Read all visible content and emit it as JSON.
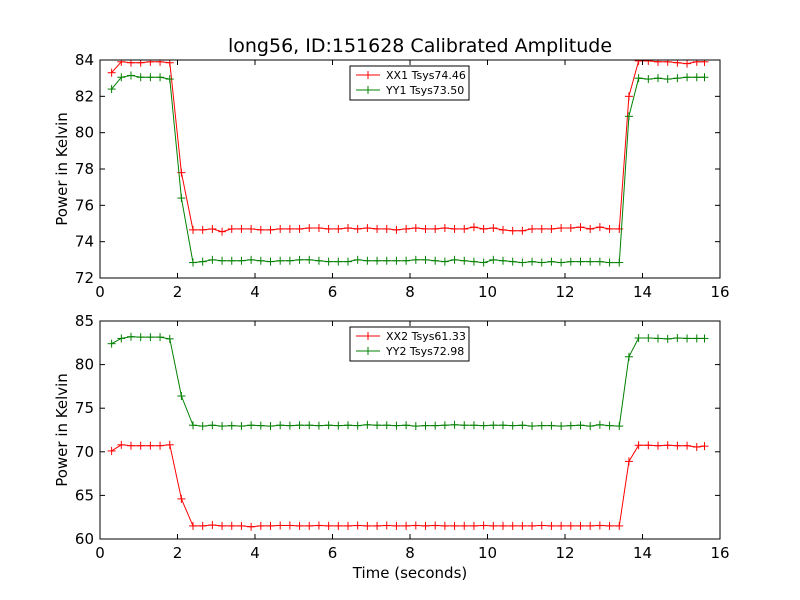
{
  "chart_data": [
    {
      "type": "line",
      "title": "long56, ID:151628 Calibrated Amplitude",
      "xlabel": "",
      "ylabel": "Power in Kelvin",
      "xlim": [
        0,
        16
      ],
      "ylim": [
        72,
        84
      ],
      "xticks": [
        0,
        2,
        4,
        6,
        8,
        10,
        12,
        14,
        16
      ],
      "yticks": [
        72,
        74,
        76,
        78,
        80,
        82,
        84
      ],
      "xtick_labels": [
        "0",
        "2",
        "4",
        "6",
        "8",
        "10",
        "12",
        "14",
        "16"
      ],
      "ytick_labels": [
        "72",
        "74",
        "76",
        "78",
        "80",
        "82",
        "84"
      ],
      "legend_position": "top-center",
      "x": [
        0.3,
        0.55,
        0.8,
        1.05,
        1.3,
        1.55,
        1.8,
        2.1,
        2.4,
        2.65,
        2.9,
        3.15,
        3.4,
        3.65,
        3.9,
        4.15,
        4.4,
        4.65,
        4.9,
        5.15,
        5.4,
        5.65,
        5.9,
        6.15,
        6.4,
        6.65,
        6.9,
        7.15,
        7.4,
        7.65,
        7.9,
        8.15,
        8.4,
        8.65,
        8.9,
        9.15,
        9.4,
        9.65,
        9.9,
        10.15,
        10.4,
        10.65,
        10.9,
        11.15,
        11.4,
        11.65,
        11.9,
        12.15,
        12.4,
        12.65,
        12.9,
        13.15,
        13.4,
        13.65,
        13.9,
        14.15,
        14.4,
        14.65,
        14.9,
        15.15,
        15.4,
        15.6
      ],
      "series": [
        {
          "name": "XX1 Tsys74.46",
          "color": "#ff0000",
          "values": [
            83.3,
            83.9,
            83.85,
            83.85,
            83.9,
            83.9,
            83.85,
            77.8,
            74.65,
            74.65,
            74.7,
            74.55,
            74.7,
            74.7,
            74.7,
            74.65,
            74.65,
            74.7,
            74.7,
            74.7,
            74.75,
            74.75,
            74.7,
            74.7,
            74.75,
            74.7,
            74.75,
            74.7,
            74.7,
            74.65,
            74.7,
            74.75,
            74.7,
            74.7,
            74.75,
            74.7,
            74.7,
            74.8,
            74.7,
            74.75,
            74.65,
            74.6,
            74.6,
            74.7,
            74.7,
            74.7,
            74.75,
            74.75,
            74.8,
            74.7,
            74.8,
            74.7,
            74.7,
            82.0,
            83.95,
            83.95,
            83.9,
            83.9,
            83.85,
            83.8,
            83.9,
            83.9
          ]
        },
        {
          "name": "YY1 Tsys73.50",
          "color": "#008000",
          "values": [
            82.4,
            83.05,
            83.15,
            83.05,
            83.05,
            83.05,
            82.95,
            76.4,
            72.85,
            72.9,
            73.0,
            72.95,
            72.95,
            72.95,
            73.0,
            72.95,
            72.9,
            72.95,
            72.95,
            73.0,
            73.0,
            72.95,
            72.9,
            72.9,
            72.9,
            73.0,
            72.95,
            72.95,
            72.95,
            72.95,
            72.95,
            73.0,
            73.0,
            72.95,
            72.9,
            73.0,
            72.95,
            72.9,
            72.85,
            73.0,
            72.95,
            72.9,
            72.85,
            72.9,
            72.85,
            72.9,
            72.85,
            72.9,
            72.9,
            72.9,
            72.9,
            72.85,
            72.85,
            80.9,
            83.0,
            82.95,
            83.0,
            82.95,
            83.0,
            83.05,
            83.05,
            83.05
          ]
        }
      ]
    },
    {
      "type": "line",
      "title": "",
      "xlabel": "Time (seconds)",
      "ylabel": "Power in Kelvin",
      "xlim": [
        0,
        16
      ],
      "ylim": [
        60,
        85
      ],
      "xticks": [
        0,
        2,
        4,
        6,
        8,
        10,
        12,
        14,
        16
      ],
      "yticks": [
        60,
        65,
        70,
        75,
        80,
        85
      ],
      "xtick_labels": [
        "0",
        "2",
        "4",
        "6",
        "8",
        "10",
        "12",
        "14",
        "16"
      ],
      "ytick_labels": [
        "60",
        "65",
        "70",
        "75",
        "80",
        "85"
      ],
      "legend_position": "top-center",
      "x": [
        0.3,
        0.55,
        0.8,
        1.05,
        1.3,
        1.55,
        1.8,
        2.1,
        2.4,
        2.65,
        2.9,
        3.15,
        3.4,
        3.65,
        3.9,
        4.15,
        4.4,
        4.65,
        4.9,
        5.15,
        5.4,
        5.65,
        5.9,
        6.15,
        6.4,
        6.65,
        6.9,
        7.15,
        7.4,
        7.65,
        7.9,
        8.15,
        8.4,
        8.65,
        8.9,
        9.15,
        9.4,
        9.65,
        9.9,
        10.15,
        10.4,
        10.65,
        10.9,
        11.15,
        11.4,
        11.65,
        11.9,
        12.15,
        12.4,
        12.65,
        12.9,
        13.15,
        13.4,
        13.65,
        13.9,
        14.15,
        14.4,
        14.65,
        14.9,
        15.15,
        15.4,
        15.6
      ],
      "series": [
        {
          "name": "XX2 Tsys61.33",
          "color": "#ff0000",
          "values": [
            70.1,
            70.8,
            70.7,
            70.7,
            70.7,
            70.7,
            70.8,
            64.6,
            61.5,
            61.5,
            61.6,
            61.5,
            61.5,
            61.5,
            61.4,
            61.5,
            61.5,
            61.55,
            61.55,
            61.5,
            61.5,
            61.55,
            61.5,
            61.5,
            61.5,
            61.55,
            61.5,
            61.5,
            61.55,
            61.5,
            61.5,
            61.55,
            61.5,
            61.55,
            61.5,
            61.5,
            61.5,
            61.5,
            61.55,
            61.5,
            61.5,
            61.5,
            61.5,
            61.5,
            61.55,
            61.5,
            61.5,
            61.5,
            61.5,
            61.5,
            61.55,
            61.5,
            61.5,
            68.9,
            70.75,
            70.75,
            70.7,
            70.75,
            70.7,
            70.7,
            70.55,
            70.65
          ]
        },
        {
          "name": "YY2 Tsys72.98",
          "color": "#008000",
          "values": [
            82.4,
            83.0,
            83.2,
            83.15,
            83.15,
            83.15,
            82.95,
            76.4,
            73.05,
            72.95,
            73.05,
            72.95,
            73.0,
            72.95,
            73.05,
            73.0,
            72.95,
            73.05,
            73.0,
            73.05,
            73.05,
            73.0,
            73.05,
            73.0,
            73.05,
            73.0,
            73.1,
            73.05,
            73.05,
            73.0,
            73.05,
            72.95,
            73.0,
            73.0,
            73.05,
            73.1,
            73.05,
            73.05,
            73.0,
            73.05,
            73.05,
            73.0,
            73.05,
            72.95,
            73.0,
            73.0,
            72.95,
            73.0,
            73.05,
            72.95,
            73.1,
            73.0,
            72.95,
            80.9,
            83.05,
            83.05,
            83.0,
            82.95,
            83.05,
            83.0,
            83.0,
            83.0
          ]
        }
      ]
    }
  ]
}
